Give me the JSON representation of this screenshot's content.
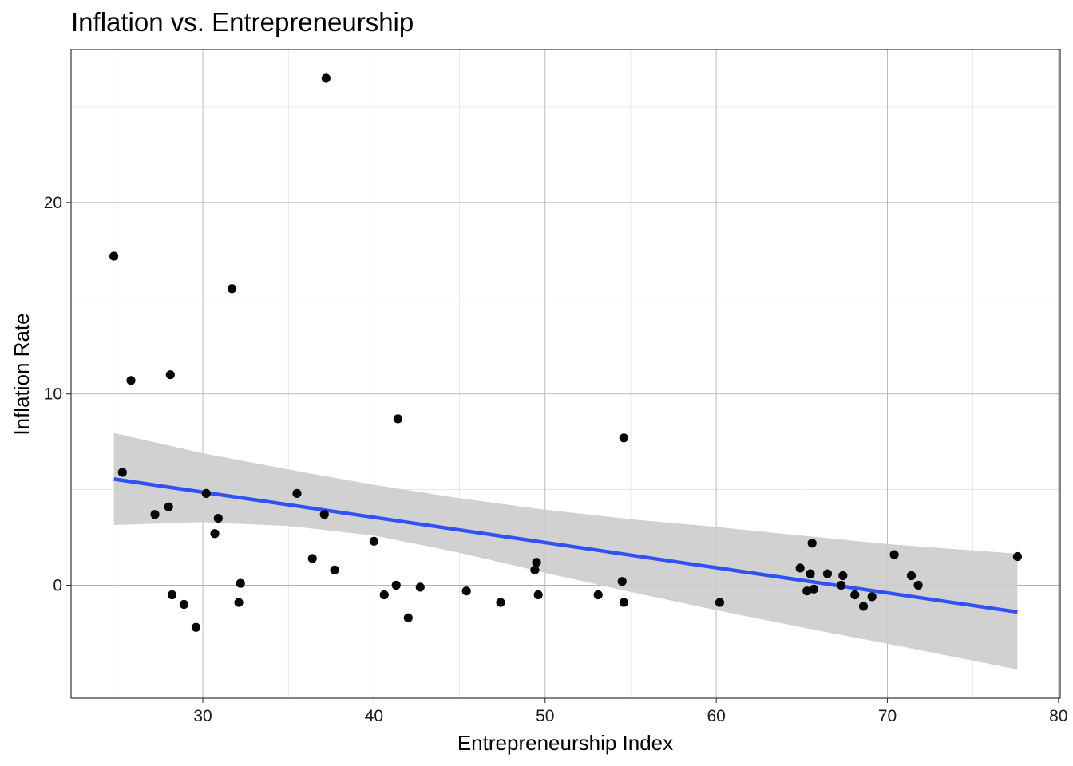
{
  "chart_data": {
    "type": "scatter",
    "title": "Inflation vs. Entrepreneurship",
    "xlabel": "Entrepreneurship Index",
    "ylabel": "Inflation Rate",
    "xlim": [
      22.3,
      80.1
    ],
    "ylim": [
      -5.9,
      28.0
    ],
    "xticks": [
      30,
      40,
      50,
      60,
      70,
      80
    ],
    "yticks": [
      0,
      10,
      20
    ],
    "xticks_minor": [
      25,
      35,
      45,
      55,
      65,
      75
    ],
    "yticks_minor": [
      -5,
      5,
      15,
      25
    ],
    "grid": true,
    "colors": {
      "points": "#000000",
      "fit_line": "#3050f8",
      "ribbon": "#cccccc",
      "grid": "#b3b3b3"
    },
    "points": [
      {
        "x": 24.8,
        "y": 17.2
      },
      {
        "x": 25.3,
        "y": 5.9
      },
      {
        "x": 25.8,
        "y": 10.7
      },
      {
        "x": 27.2,
        "y": 3.7
      },
      {
        "x": 28.0,
        "y": 4.1
      },
      {
        "x": 28.1,
        "y": 11.0
      },
      {
        "x": 28.2,
        "y": -0.5
      },
      {
        "x": 28.9,
        "y": -1.0
      },
      {
        "x": 29.6,
        "y": -2.2
      },
      {
        "x": 30.2,
        "y": 4.8
      },
      {
        "x": 30.7,
        "y": 2.7
      },
      {
        "x": 30.9,
        "y": 3.5
      },
      {
        "x": 31.7,
        "y": 15.5
      },
      {
        "x": 32.1,
        "y": -0.9
      },
      {
        "x": 32.2,
        "y": 0.1
      },
      {
        "x": 35.5,
        "y": 4.8
      },
      {
        "x": 36.4,
        "y": 1.4
      },
      {
        "x": 37.1,
        "y": 3.7
      },
      {
        "x": 37.2,
        "y": 26.5
      },
      {
        "x": 37.7,
        "y": 0.8
      },
      {
        "x": 40.0,
        "y": 2.3
      },
      {
        "x": 40.6,
        "y": -0.5
      },
      {
        "x": 41.3,
        "y": 0.0
      },
      {
        "x": 41.4,
        "y": 8.7
      },
      {
        "x": 42.0,
        "y": -1.7
      },
      {
        "x": 42.7,
        "y": -0.1
      },
      {
        "x": 45.4,
        "y": -0.3
      },
      {
        "x": 47.4,
        "y": -0.9
      },
      {
        "x": 49.4,
        "y": 0.8
      },
      {
        "x": 49.5,
        "y": 1.2
      },
      {
        "x": 49.6,
        "y": -0.5
      },
      {
        "x": 53.1,
        "y": -0.5
      },
      {
        "x": 54.5,
        "y": 0.2
      },
      {
        "x": 54.6,
        "y": 7.7
      },
      {
        "x": 54.6,
        "y": -0.9
      },
      {
        "x": 60.2,
        "y": -0.9
      },
      {
        "x": 64.9,
        "y": 0.9
      },
      {
        "x": 65.3,
        "y": -0.3
      },
      {
        "x": 65.5,
        "y": 0.6
      },
      {
        "x": 65.6,
        "y": 2.2
      },
      {
        "x": 65.7,
        "y": -0.2
      },
      {
        "x": 66.5,
        "y": 0.6
      },
      {
        "x": 67.3,
        "y": 0.0
      },
      {
        "x": 67.4,
        "y": 0.5
      },
      {
        "x": 68.1,
        "y": -0.5
      },
      {
        "x": 68.6,
        "y": -1.1
      },
      {
        "x": 69.1,
        "y": -0.6
      },
      {
        "x": 70.4,
        "y": 1.6
      },
      {
        "x": 71.4,
        "y": 0.5
      },
      {
        "x": 71.8,
        "y": 0.0
      },
      {
        "x": 77.6,
        "y": 1.5
      }
    ],
    "fit_line": {
      "x": [
        24.8,
        77.6
      ],
      "y": [
        5.55,
        -1.4
      ]
    },
    "confidence_band": {
      "x": [
        24.8,
        30.0,
        35.0,
        40.0,
        45.0,
        50.0,
        55.0,
        60.0,
        65.0,
        70.0,
        77.6
      ],
      "upper": [
        7.95,
        6.9,
        6.05,
        5.25,
        4.55,
        3.95,
        3.45,
        3.05,
        2.6,
        2.15,
        1.65
      ],
      "lower": [
        3.15,
        3.3,
        3.1,
        2.6,
        1.7,
        0.65,
        -0.35,
        -1.3,
        -2.2,
        -3.05,
        -4.4
      ]
    }
  }
}
